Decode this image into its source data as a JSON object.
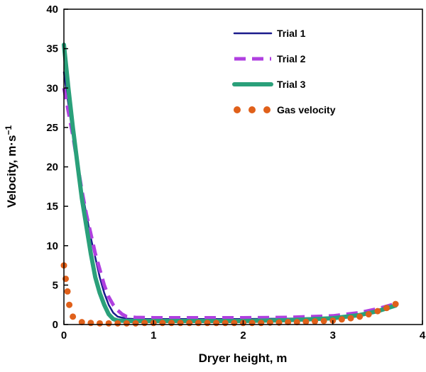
{
  "chart_data": {
    "type": "line",
    "title": "",
    "xlabel": "Dryer height, m",
    "ylabel": "Velocity, m·s",
    "ylabel_sup": "−1",
    "xlim": [
      0,
      4
    ],
    "ylim": [
      0,
      40
    ],
    "xticks": [
      0,
      1,
      2,
      3,
      4
    ],
    "yticks": [
      0,
      5,
      10,
      15,
      20,
      25,
      30,
      35,
      40
    ],
    "grid": false,
    "legend_position": "top-right",
    "series": [
      {
        "name": "Trial 1",
        "style": "solid",
        "color": "#1a1a8c",
        "x": [
          0,
          0.05,
          0.1,
          0.15,
          0.2,
          0.25,
          0.3,
          0.35,
          0.4,
          0.45,
          0.5,
          0.55,
          0.6,
          0.7,
          0.8,
          1.0,
          1.5,
          2.0,
          2.5,
          3.0,
          3.3,
          3.5,
          3.7
        ],
        "y": [
          32,
          28,
          24,
          20.5,
          17,
          14,
          11,
          8.5,
          6,
          4,
          2.5,
          1.5,
          1.0,
          0.75,
          0.7,
          0.7,
          0.7,
          0.7,
          0.75,
          0.9,
          1.3,
          1.8,
          2.5
        ]
      },
      {
        "name": "Trial 2",
        "style": "dashed",
        "color": "#b040e0",
        "x": [
          0,
          0.05,
          0.1,
          0.15,
          0.2,
          0.25,
          0.3,
          0.35,
          0.4,
          0.45,
          0.5,
          0.55,
          0.6,
          0.65,
          0.7,
          0.8,
          1.0,
          1.5,
          2.0,
          2.5,
          3.0,
          3.3,
          3.5,
          3.72
        ],
        "y": [
          30,
          27,
          24,
          20.5,
          17,
          14,
          11.5,
          9,
          7,
          5,
          3.5,
          2.5,
          1.8,
          1.3,
          1.0,
          0.9,
          0.85,
          0.85,
          0.85,
          0.9,
          1.1,
          1.5,
          2.0,
          2.7
        ]
      },
      {
        "name": "Trial 3",
        "style": "solid",
        "color": "#2aa07a",
        "x": [
          0,
          0.05,
          0.1,
          0.15,
          0.2,
          0.25,
          0.3,
          0.35,
          0.4,
          0.45,
          0.5,
          0.55,
          0.6,
          0.7,
          1.0,
          1.5,
          2.0,
          2.5,
          3.0,
          3.3,
          3.5,
          3.7
        ],
        "y": [
          35.5,
          30,
          25,
          20.5,
          16,
          12.5,
          9,
          6,
          4,
          2.5,
          1.3,
          0.7,
          0.5,
          0.45,
          0.45,
          0.45,
          0.45,
          0.55,
          0.8,
          1.2,
          1.7,
          2.4
        ]
      },
      {
        "name": "Gas velocity",
        "style": "dotted",
        "color": "#e0601a",
        "x": [
          0,
          0.02,
          0.04,
          0.06,
          0.1,
          0.2,
          0.3,
          0.4,
          0.5,
          0.6,
          0.7,
          0.8,
          0.9,
          1.0,
          1.1,
          1.2,
          1.3,
          1.4,
          1.5,
          1.6,
          1.7,
          1.8,
          1.9,
          2.0,
          2.1,
          2.2,
          2.3,
          2.4,
          2.5,
          2.6,
          2.7,
          2.8,
          2.9,
          3.0,
          3.1,
          3.2,
          3.3,
          3.4,
          3.5,
          3.6,
          3.7
        ],
        "y": [
          7.5,
          5.8,
          4.2,
          2.5,
          1.0,
          0.3,
          0.2,
          0.15,
          0.15,
          0.15,
          0.15,
          0.15,
          0.2,
          0.2,
          0.2,
          0.2,
          0.2,
          0.2,
          0.2,
          0.2,
          0.2,
          0.2,
          0.2,
          0.2,
          0.2,
          0.2,
          0.25,
          0.25,
          0.3,
          0.3,
          0.35,
          0.4,
          0.45,
          0.5,
          0.65,
          0.8,
          1.0,
          1.3,
          1.7,
          2.1,
          2.6
        ]
      }
    ]
  }
}
